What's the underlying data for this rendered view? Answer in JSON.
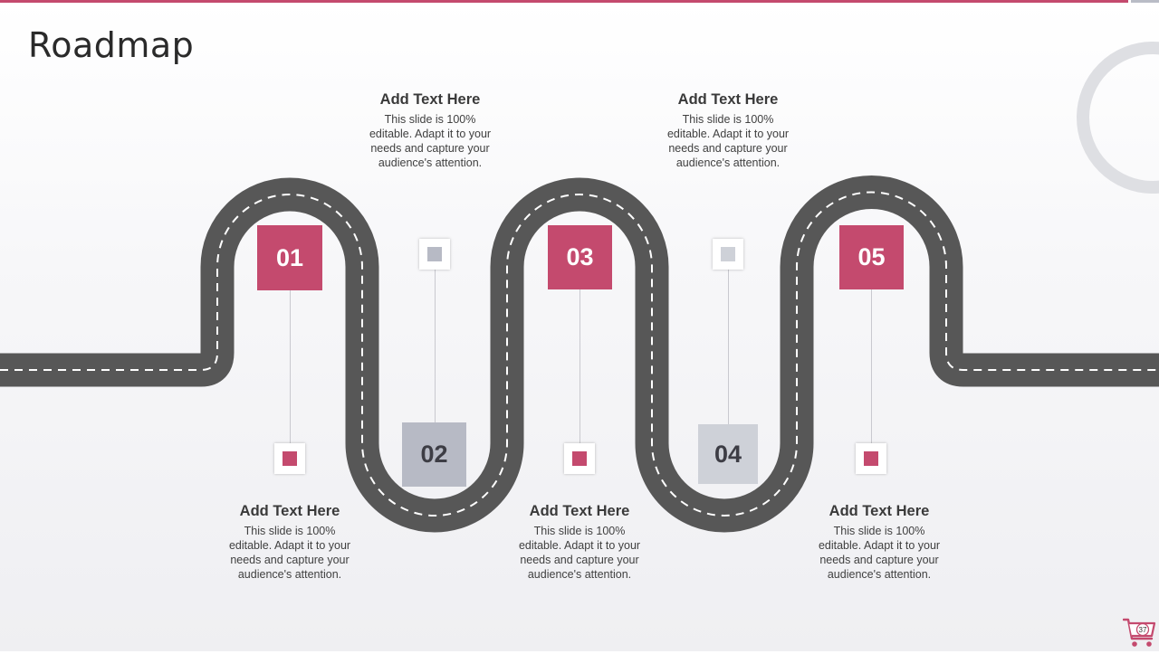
{
  "title": "Roadmap",
  "colors": {
    "accent": "#c44a6e",
    "road": "#575757",
    "gray_box": "#b7bac5",
    "gray_box_light": "#ced1d8"
  },
  "steps": [
    {
      "number": "01",
      "heading": "Add Text Here",
      "body": "This slide is 100% editable. Adapt it to your needs and capture your audience's attention."
    },
    {
      "number": "02",
      "heading": "Add Text Here",
      "body": "This slide is 100% editable. Adapt it to your needs and capture your audience's attention."
    },
    {
      "number": "03",
      "heading": "Add Text Here",
      "body": "This slide is 100% editable. Adapt it to your needs and capture your audience's attention."
    },
    {
      "number": "04",
      "heading": "Add Text Here",
      "body": "This slide is 100% editable. Adapt it to your needs and capture your audience's attention."
    },
    {
      "number": "05",
      "heading": "Add Text Here",
      "body": "This slide is 100% editable. Adapt it to your needs and capture your audience's attention."
    }
  ],
  "page_number": "37",
  "icons": {
    "cart": "shopping-cart-icon",
    "ring": "decorative-ring"
  }
}
